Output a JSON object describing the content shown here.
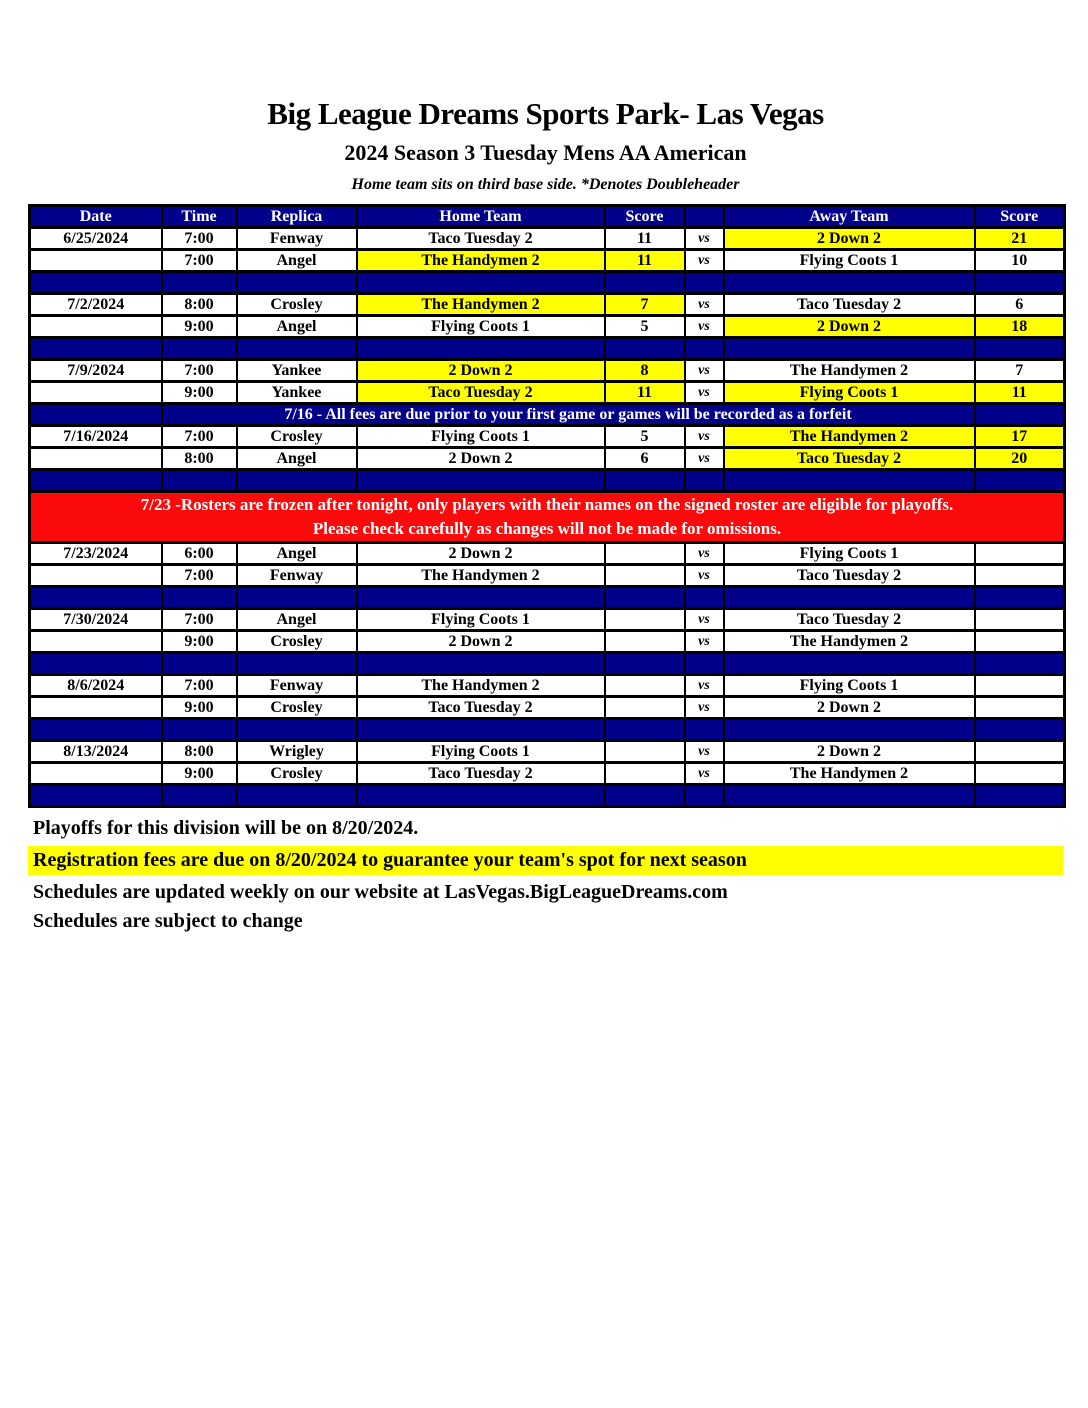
{
  "page": {
    "title": "Big League Dreams Sports Park- Las Vegas",
    "subtitle": "2024 Season 3 Tuesday Mens AA American",
    "note": "Home team sits on third base side.  *Denotes Doubleheader"
  },
  "colors": {
    "navy": "#00008B",
    "yellow": "#FFFF00",
    "red": "#FA0A0A",
    "header_text": "#FFFFFF",
    "body_text": "#000000"
  },
  "table": {
    "headers": [
      "Date",
      "Time",
      "Replica",
      "Home Team",
      "Score",
      "",
      "Away Team",
      "Score"
    ],
    "vs_label": "vs",
    "rows": [
      {
        "type": "game",
        "date": "6/25/2024",
        "time": "7:00",
        "replica": "Fenway",
        "home": "Taco Tuesday 2",
        "home_score": "11",
        "away": "2 Down 2",
        "away_score": "21",
        "home_hl": false,
        "away_hl": true
      },
      {
        "type": "game",
        "date": "",
        "time": "7:00",
        "replica": "Angel",
        "home": "The Handymen 2",
        "home_score": "11",
        "away": "Flying Coots 1",
        "away_score": "10",
        "home_hl": true,
        "away_hl": false
      },
      {
        "type": "separator"
      },
      {
        "type": "game",
        "date": "7/2/2024",
        "time": "8:00",
        "replica": "Crosley",
        "home": "The Handymen 2",
        "home_score": "7",
        "away": "Taco Tuesday 2",
        "away_score": "6",
        "home_hl": true,
        "away_hl": false
      },
      {
        "type": "game",
        "date": "",
        "time": "9:00",
        "replica": "Angel",
        "home": "Flying Coots 1",
        "home_score": "5",
        "away": "2 Down 2",
        "away_score": "18",
        "home_hl": false,
        "away_hl": true
      },
      {
        "type": "separator"
      },
      {
        "type": "game",
        "date": "7/9/2024",
        "time": "7:00",
        "replica": "Yankee",
        "home": "2 Down 2",
        "home_score": "8",
        "away": "The Handymen 2",
        "away_score": "7",
        "home_hl": true,
        "away_hl": false
      },
      {
        "type": "game",
        "date": "",
        "time": "9:00",
        "replica": "Yankee",
        "home": "Taco Tuesday 2",
        "home_score": "11",
        "away": "Flying Coots 1",
        "away_score": "11",
        "home_hl": true,
        "away_hl": true
      },
      {
        "type": "banner",
        "text": "7/16 - All fees are due prior to your first game or games will be recorded as a forfeit"
      },
      {
        "type": "game",
        "date": "7/16/2024",
        "time": "7:00",
        "replica": "Crosley",
        "home": "Flying Coots 1",
        "home_score": "5",
        "away": "The Handymen 2",
        "away_score": "17",
        "home_hl": false,
        "away_hl": true
      },
      {
        "type": "game",
        "date": "",
        "time": "8:00",
        "replica": "Angel",
        "home": "2 Down 2",
        "home_score": "6",
        "away": "Taco Tuesday 2",
        "away_score": "20",
        "home_hl": false,
        "away_hl": true
      },
      {
        "type": "separator"
      },
      {
        "type": "notice",
        "lines": [
          "7/23 -Rosters are frozen after tonight, only players with their names on the signed roster are eligible for playoffs.",
          "Please check carefully as changes will not be made for omissions."
        ]
      },
      {
        "type": "game",
        "date": "7/23/2024",
        "time": "6:00",
        "replica": "Angel",
        "home": "2 Down 2",
        "home_score": "",
        "away": "Flying Coots 1",
        "away_score": "",
        "home_hl": false,
        "away_hl": false
      },
      {
        "type": "game",
        "date": "",
        "time": "7:00",
        "replica": "Fenway",
        "home": "The Handymen 2",
        "home_score": "",
        "away": "Taco Tuesday 2",
        "away_score": "",
        "home_hl": false,
        "away_hl": false
      },
      {
        "type": "separator"
      },
      {
        "type": "game",
        "date": "7/30/2024",
        "time": "7:00",
        "replica": "Angel",
        "home": "Flying Coots 1",
        "home_score": "",
        "away": "Taco Tuesday 2",
        "away_score": "",
        "home_hl": false,
        "away_hl": false
      },
      {
        "type": "game",
        "date": "",
        "time": "9:00",
        "replica": "Crosley",
        "home": "2 Down 2",
        "home_score": "",
        "away": "The Handymen 2",
        "away_score": "",
        "home_hl": false,
        "away_hl": false
      },
      {
        "type": "separator"
      },
      {
        "type": "game",
        "date": "8/6/2024",
        "time": "7:00",
        "replica": "Fenway",
        "home": "The Handymen 2",
        "home_score": "",
        "away": "Flying Coots 1",
        "away_score": "",
        "home_hl": false,
        "away_hl": false
      },
      {
        "type": "game",
        "date": "",
        "time": "9:00",
        "replica": "Crosley",
        "home": "Taco Tuesday 2",
        "home_score": "",
        "away": "2 Down 2",
        "away_score": "",
        "home_hl": false,
        "away_hl": false
      },
      {
        "type": "separator"
      },
      {
        "type": "game",
        "date": "8/13/2024",
        "time": "8:00",
        "replica": "Wrigley",
        "home": "Flying Coots 1",
        "home_score": "",
        "away": "2 Down 2",
        "away_score": "",
        "home_hl": false,
        "away_hl": false
      },
      {
        "type": "game",
        "date": "",
        "time": "9:00",
        "replica": "Crosley",
        "home": "Taco Tuesday 2",
        "home_score": "",
        "away": "The Handymen 2",
        "away_score": "",
        "home_hl": false,
        "away_hl": false
      },
      {
        "type": "separator"
      }
    ]
  },
  "footer": {
    "playoffs": "Playoffs for this division will be on 8/20/2024.",
    "registration": "Registration fees are due on 8/20/2024 to guarantee your team's spot for next season",
    "website": "Schedules are updated weekly on our website at LasVegas.BigLeagueDreams.com",
    "subject_to_change": "Schedules are subject to change"
  }
}
